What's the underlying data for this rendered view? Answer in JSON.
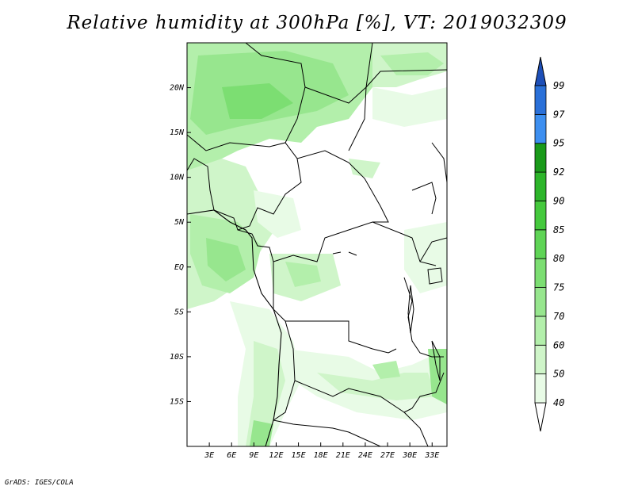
{
  "title": "Relative humidity at 300hPa [%], VT: 2019032309",
  "footer": "GrADS: IGES/COLA",
  "map": {
    "lon_range": [
      0,
      35
    ],
    "lat_range": [
      -20,
      25
    ],
    "lon_ticks": [
      "3E",
      "6E",
      "9E",
      "12E",
      "15E",
      "18E",
      "21E",
      "24E",
      "27E",
      "30E",
      "33E"
    ],
    "lon_tick_values": [
      3,
      6,
      9,
      12,
      15,
      18,
      21,
      24,
      27,
      30,
      33
    ],
    "lat_ticks": [
      "20N",
      "15N",
      "10N",
      "5N",
      "EQ",
      "5S",
      "10S",
      "15S"
    ],
    "lat_tick_values": [
      20,
      15,
      10,
      5,
      0,
      -5,
      -10,
      -15
    ]
  },
  "colorbar": {
    "levels": [
      "40",
      "50",
      "60",
      "70",
      "75",
      "80",
      "85",
      "90",
      "92",
      "95",
      "97",
      "99"
    ],
    "colors": [
      "#e8fbe6",
      "#cff5c9",
      "#b3efab",
      "#97e68e",
      "#7cde72",
      "#5fd456",
      "#45c93d",
      "#2db52a",
      "#1a9a1a",
      "#3d8ff0",
      "#2a70d8",
      "#1d55c0"
    ],
    "below_color": "#ffffff",
    "above_color": "#1d4fb8"
  }
}
